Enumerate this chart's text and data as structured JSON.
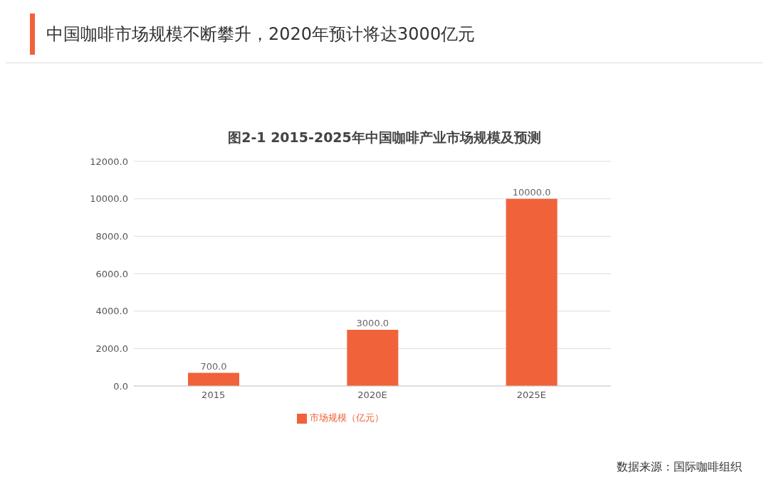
{
  "chart_data": {
    "type": "bar",
    "title": "中国咖啡市场规模不断攀升，2020年预计将达3000亿元",
    "subtitle": "图2-1 2015-2025年中国咖啡产业市场规模及预测",
    "categories": [
      "2015",
      "2020E",
      "2025E"
    ],
    "series": [
      {
        "name": "市场规模（亿元）",
        "color": "#f0623a",
        "values": [
          700,
          3000,
          10000
        ],
        "value_labels": [
          "700.0",
          "3000.0",
          "10000.0"
        ]
      }
    ],
    "ylim": [
      0,
      12000
    ],
    "yticks": [
      {
        "value": 0,
        "label": "0.0"
      },
      {
        "value": 2000,
        "label": "2000.0"
      },
      {
        "value": 4000,
        "label": "4000.0"
      },
      {
        "value": 6000,
        "label": "6000.0"
      },
      {
        "value": 8000,
        "label": "8000.0"
      },
      {
        "value": 10000,
        "label": "10000.0"
      },
      {
        "value": 12000,
        "label": "12000.0"
      }
    ],
    "grid": "y",
    "legend": "bottom",
    "annotations": [
      "数据来源：国际咖啡组织"
    ]
  }
}
